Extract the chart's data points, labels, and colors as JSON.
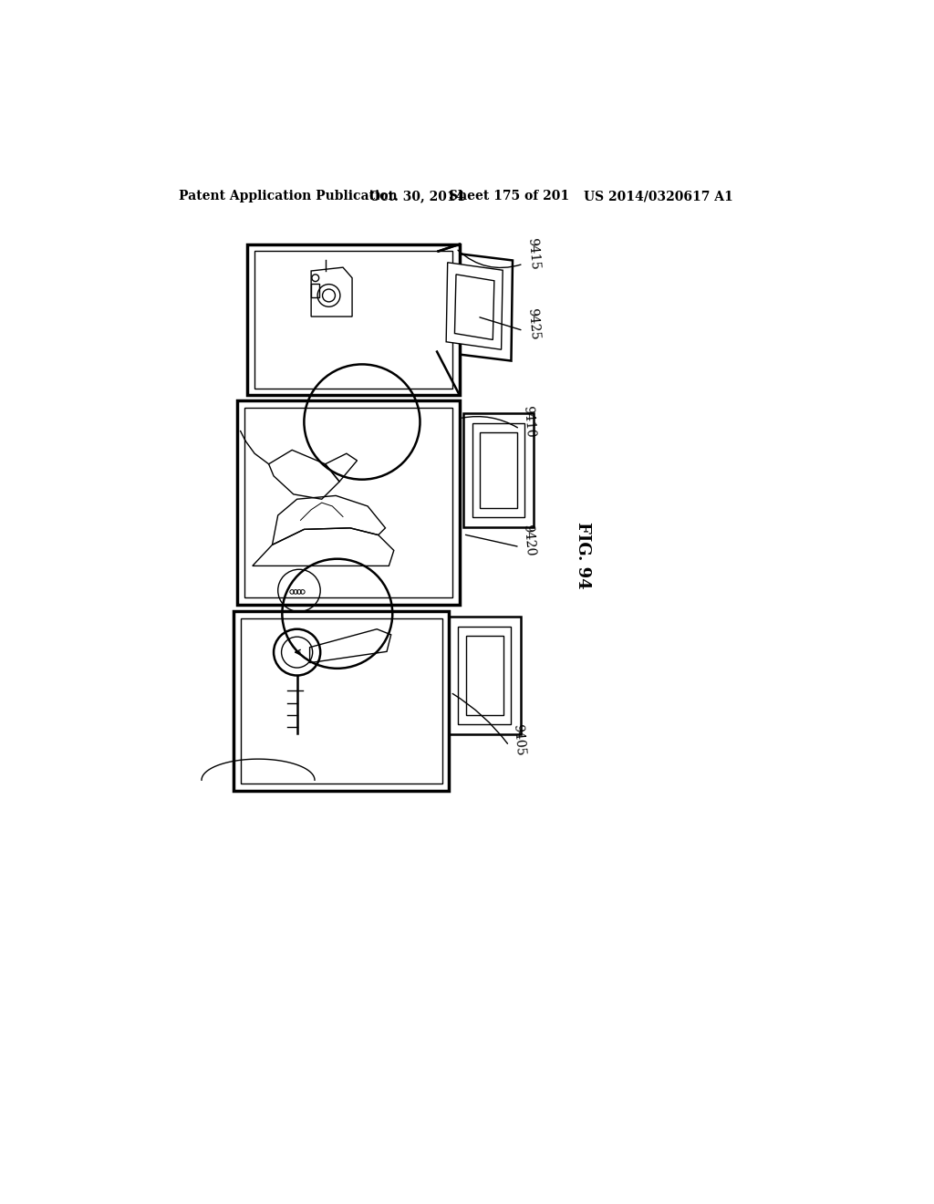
{
  "bg_color": "#ffffff",
  "header_left": "Patent Application Publication",
  "header_mid1": "Oct. 30, 2014",
  "header_mid2": "Sheet 175 of 201",
  "header_right": "US 2014/0320617 A1",
  "fig_label": "FIG. 94",
  "labels": [
    "9415",
    "9425",
    "9410",
    "9420",
    "9405"
  ]
}
